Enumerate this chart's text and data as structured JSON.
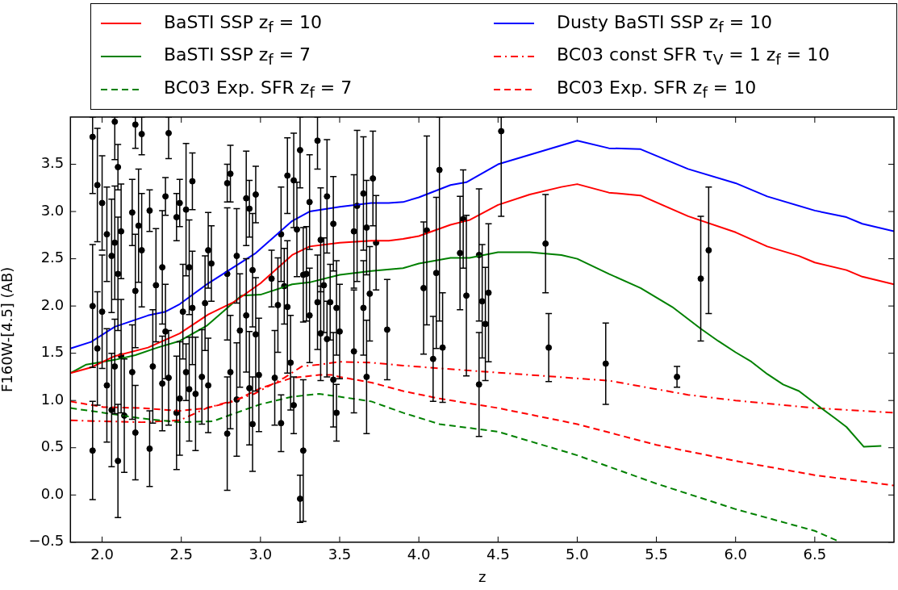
{
  "chart_data": {
    "type": "line",
    "xlabel": "z",
    "ylabel": "F160W-[4.5] (AB)",
    "xlim": [
      1.8,
      7.0
    ],
    "ylim": [
      -0.5,
      4.0
    ],
    "xticks": [
      {
        "value": 2,
        "label": "2.0"
      },
      {
        "value": 2.5,
        "label": "2.5"
      },
      {
        "value": 3,
        "label": "3.0"
      },
      {
        "value": 3.5,
        "label": "3.5"
      },
      {
        "value": 4,
        "label": "4.0"
      },
      {
        "value": 4.5,
        "label": "4.5"
      },
      {
        "value": 5,
        "label": "5.0"
      },
      {
        "value": 5.5,
        "label": "5.5"
      },
      {
        "value": 6,
        "label": "6.0"
      },
      {
        "value": 6.5,
        "label": "6.5"
      }
    ],
    "yticks": [
      {
        "value": -0.5,
        "label": "−0.5"
      },
      {
        "value": 0,
        "label": "0.0"
      },
      {
        "value": 0.5,
        "label": "0.5"
      },
      {
        "value": 1,
        "label": "1.0"
      },
      {
        "value": 1.5,
        "label": "1.5"
      },
      {
        "value": 2,
        "label": "2.0"
      },
      {
        "value": 2.5,
        "label": "2.5"
      },
      {
        "value": 3,
        "label": "3.0"
      },
      {
        "value": 3.5,
        "label": "3.5"
      }
    ],
    "legend": "top",
    "series": [
      {
        "name": "BaSTI SSP z$_{f}$ = 10",
        "color": "#ff0000",
        "line_style": "solid",
        "x": [
          1.8,
          1.93,
          2.08,
          2.29,
          2.49,
          2.67,
          2.83,
          3.0,
          3.2,
          3.31,
          3.5,
          3.7,
          3.81,
          3.9,
          4.0,
          4.2,
          4.32,
          4.5,
          4.7,
          4.9,
          5.0,
          5.2,
          5.4,
          5.7,
          6.0,
          6.2,
          6.4,
          6.5,
          6.7,
          6.8,
          7.0
        ],
        "values": [
          1.29,
          1.35,
          1.47,
          1.56,
          1.71,
          1.91,
          2.04,
          2.24,
          2.54,
          2.63,
          2.67,
          2.69,
          2.69,
          2.71,
          2.74,
          2.86,
          2.91,
          3.07,
          3.18,
          3.26,
          3.29,
          3.2,
          3.17,
          2.95,
          2.78,
          2.63,
          2.53,
          2.46,
          2.38,
          2.31,
          2.23
        ]
      },
      {
        "name": "BaSTI SSP z$_{f}$ = 7",
        "color": "#008000",
        "line_style": "solid",
        "x": [
          1.8,
          1.9,
          2.08,
          2.21,
          2.35,
          2.49,
          2.66,
          2.88,
          3.0,
          3.2,
          3.31,
          3.5,
          3.7,
          3.9,
          4.0,
          4.2,
          4.32,
          4.5,
          4.7,
          4.9,
          5.0,
          5.2,
          5.4,
          5.6,
          5.78,
          5.89,
          6.0,
          6.1,
          6.2,
          6.3,
          6.4,
          6.54,
          6.63,
          6.7,
          6.81,
          6.92
        ],
        "values": [
          1.29,
          1.38,
          1.43,
          1.48,
          1.56,
          1.63,
          1.79,
          2.11,
          2.12,
          2.23,
          2.25,
          2.33,
          2.37,
          2.4,
          2.45,
          2.51,
          2.51,
          2.57,
          2.57,
          2.54,
          2.5,
          2.34,
          2.19,
          1.99,
          1.76,
          1.63,
          1.51,
          1.41,
          1.28,
          1.17,
          1.1,
          0.92,
          0.81,
          0.72,
          0.51,
          0.52
        ]
      },
      {
        "name": "BC03 Exp. SFR z$_{f}$ = 7",
        "color": "#008000",
        "line_style": "dashed",
        "x": [
          1.8,
          2.01,
          2.25,
          2.49,
          2.7,
          2.83,
          3.0,
          3.2,
          3.37,
          3.5,
          3.7,
          3.9,
          4.13,
          4.5,
          5.0,
          5.5,
          6.0,
          6.5,
          6.65
        ],
        "values": [
          0.92,
          0.87,
          0.81,
          0.77,
          0.78,
          0.86,
          0.96,
          1.04,
          1.07,
          1.04,
          0.99,
          0.87,
          0.75,
          0.67,
          0.42,
          0.12,
          -0.15,
          -0.38,
          -0.49
        ]
      },
      {
        "name": "Dusty BaSTI SSP z$_{f}$ = 10",
        "color": "#0000ff",
        "line_style": "solid",
        "x": [
          1.8,
          1.93,
          2.08,
          2.29,
          2.4,
          2.49,
          2.67,
          2.97,
          3.2,
          3.31,
          3.5,
          3.7,
          3.81,
          3.9,
          4.0,
          4.2,
          4.3,
          4.5,
          5.0,
          5.2,
          5.4,
          5.7,
          6.0,
          6.2,
          6.5,
          6.7,
          6.8,
          7.0
        ],
        "values": [
          1.55,
          1.62,
          1.78,
          1.9,
          1.94,
          2.02,
          2.24,
          2.56,
          2.9,
          3.0,
          3.05,
          3.09,
          3.09,
          3.1,
          3.15,
          3.28,
          3.31,
          3.5,
          3.75,
          3.67,
          3.66,
          3.45,
          3.3,
          3.16,
          3.01,
          2.94,
          2.87,
          2.79
        ]
      },
      {
        "name": "BC03 const SFR τ$_{V}$ = 1 z$_{f}$ = 10",
        "color": "#ff0000",
        "line_style": "dashdot",
        "x": [
          1.8,
          2.01,
          2.25,
          2.49,
          2.66,
          2.83,
          2.96,
          3.15,
          3.26,
          3.37,
          3.5,
          3.7,
          3.9,
          4.13,
          5.2,
          5.7,
          6.0,
          6.5,
          7.0
        ],
        "values": [
          0.79,
          0.78,
          0.77,
          0.79,
          0.92,
          1.0,
          1.07,
          1.24,
          1.36,
          1.38,
          1.41,
          1.4,
          1.37,
          1.34,
          1.21,
          1.06,
          1.0,
          0.92,
          0.87
        ]
      },
      {
        "name": "BC03 Exp. SFR z$_{f}$ = 10",
        "color": "#ff0000",
        "line_style": "dashed",
        "x": [
          1.8,
          2.01,
          2.25,
          2.49,
          2.66,
          2.83,
          3.0,
          3.2,
          3.37,
          3.45,
          3.5,
          3.7,
          3.9,
          4.13,
          4.5,
          5.0,
          5.5,
          6.0,
          6.5,
          7.0
        ],
        "values": [
          0.99,
          0.93,
          0.92,
          0.89,
          0.92,
          0.99,
          1.13,
          1.24,
          1.27,
          1.27,
          1.25,
          1.19,
          1.1,
          1.02,
          0.92,
          0.75,
          0.53,
          0.36,
          0.21,
          0.1
        ]
      },
      {
        "type": "scatter",
        "color": "#000000",
        "marker": "circle",
        "x": [
          1.94,
          1.97,
          2.0,
          2.03,
          2.06,
          1.94,
          1.97,
          2.03,
          2.06,
          1.94,
          2.0,
          2.08,
          2.1,
          2.08,
          2.1,
          2.08,
          2.1,
          2.12,
          2.12,
          2.14,
          2.21,
          2.25,
          2.19,
          2.21,
          2.19,
          2.21,
          2.23,
          2.25,
          2.3,
          2.4,
          2.3,
          2.32,
          2.34,
          2.38,
          2.38,
          2.42,
          2.42,
          2.4,
          2.49,
          2.47,
          2.49,
          2.47,
          2.51,
          2.53,
          2.57,
          2.53,
          2.55,
          2.59,
          2.55,
          2.57,
          2.67,
          2.69,
          2.67,
          2.63,
          2.65,
          2.79,
          2.81,
          2.79,
          2.79,
          2.81,
          2.87,
          2.85,
          2.85,
          2.91,
          2.97,
          2.93,
          2.91,
          2.93,
          2.95,
          2.97,
          2.95,
          2.99,
          3.07,
          3.09,
          3.13,
          3.11,
          3.13,
          3.15,
          3.17,
          3.17,
          3.19,
          3.21,
          3.23,
          3.21,
          3.25,
          3.27,
          3.25,
          3.31,
          3.27,
          3.31,
          3.29,
          3.36,
          3.38,
          3.36,
          3.38,
          3.4,
          3.42,
          3.44,
          3.42,
          3.46,
          3.48,
          3.48,
          3.5,
          3.46,
          3.59,
          3.59,
          3.61,
          3.65,
          3.67,
          3.69,
          3.65,
          3.71,
          3.73,
          3.67,
          3.8,
          4.05,
          4.03,
          4.13,
          4.11,
          4.09,
          4.15,
          4.28,
          4.26,
          4.3,
          4.38,
          4.4,
          4.42,
          4.38,
          4.44,
          4.52,
          4.8,
          4.82,
          5.18,
          5.63,
          5.78,
          5.83
        ],
        "values": [
          3.79,
          3.28,
          3.09,
          2.76,
          2.53,
          2.0,
          1.55,
          1.16,
          0.9,
          0.47,
          1.94,
          3.95,
          3.47,
          2.67,
          2.34,
          1.36,
          0.36,
          1.47,
          2.79,
          0.84,
          3.92,
          3.82,
          2.99,
          2.16,
          1.3,
          0.66,
          2.85,
          2.59,
          3.01,
          3.16,
          0.49,
          1.36,
          2.22,
          2.41,
          1.18,
          3.83,
          1.24,
          1.73,
          3.09,
          2.94,
          1.02,
          0.87,
          1.94,
          3.02,
          3.32,
          1.3,
          1.12,
          1.07,
          2.41,
          1.98,
          2.59,
          2.45,
          1.16,
          1.25,
          2.03,
          3.3,
          3.4,
          2.34,
          0.65,
          1.3,
          1.74,
          1.01,
          2.53,
          3.14,
          3.18,
          3.03,
          1.9,
          1.13,
          0.75,
          1.7,
          2.38,
          1.27,
          2.29,
          1.24,
          2.76,
          2.01,
          0.76,
          2.21,
          3.38,
          1.99,
          1.4,
          0.95,
          2.81,
          3.33,
          3.65,
          0.47,
          -0.04,
          3.1,
          2.33,
          1.9,
          2.34,
          3.75,
          2.7,
          2.04,
          1.71,
          2.22,
          1.65,
          2.04,
          3.16,
          2.87,
          1.98,
          0.87,
          1.73,
          1.22,
          2.79,
          1.52,
          3.06,
          3.19,
          2.83,
          2.13,
          1.98,
          3.35,
          2.67,
          1.25,
          1.75,
          2.8,
          2.19,
          3.44,
          2.35,
          1.44,
          1.56,
          2.92,
          2.56,
          2.11,
          2.54,
          2.05,
          1.81,
          1.17,
          2.14,
          3.85,
          2.66,
          1.56,
          1.39,
          1.25,
          2.29,
          2.59
        ],
        "errors": [
          [
            3.19,
            4.0
          ],
          0.6,
          0.5,
          0.5,
          0.6,
          0.65,
          0.6,
          0.6,
          0.6,
          0.52,
          0.6,
          [
            3.55,
            4.0
          ],
          0.24,
          0.6,
          0.6,
          0.5,
          0.6,
          0.6,
          0.5,
          0.6,
          [
            3.67,
            4.0
          ],
          [
            3.6,
            4.0
          ],
          0.35,
          0.6,
          0.5,
          0.5,
          0.6,
          0.6,
          0.22,
          0.2,
          0.4,
          0.6,
          0.6,
          0.6,
          0.5,
          [
            3.56,
            4.0
          ],
          0.5,
          0.5,
          0.25,
          0.25,
          0.6,
          0.6,
          0.5,
          0.7,
          0.3,
          0.3,
          0.55,
          0.6,
          0.5,
          0.6,
          0.4,
          0.4,
          0.5,
          0.5,
          0.5,
          0.2,
          0.3,
          0.7,
          0.6,
          0.6,
          0.6,
          0.6,
          0.5,
          0.5,
          0.3,
          0.3,
          0.6,
          0.6,
          0.5,
          0.6,
          0.6,
          0.6,
          0.3,
          0.5,
          0.5,
          0.5,
          0.3,
          0.4,
          0.4,
          0.7,
          0.5,
          0.3,
          0.5,
          0.5,
          [
            3.25,
            4.0
          ],
          0.75,
          0.25,
          0.5,
          0.5,
          0.5,
          0.5,
          [
            3.45,
            4.0
          ],
          0.55,
          0.5,
          0.5,
          0.5,
          0.4,
          0.4,
          0.6,
          0.5,
          0.5,
          0.3,
          0.5,
          0.5,
          0.6,
          0.65,
          0.8,
          0.6,
          0.5,
          0.5,
          0.5,
          0.5,
          0.5,
          0.6,
          0.53,
          1.0,
          0.7,
          [
            1.84,
            4.0
          ],
          0.8,
          0.45,
          0.58,
          0.52,
          0.6,
          0.85,
          0.7,
          0.6,
          0.6,
          0.55,
          0.73,
          [
            2.95,
            4.0
          ],
          0.52,
          0.36,
          0.43,
          0.11,
          0.66,
          0.67
        ]
      }
    ]
  }
}
